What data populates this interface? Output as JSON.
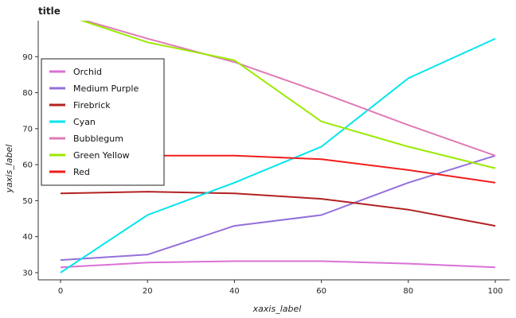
{
  "chart_data": {
    "type": "line",
    "title": "title",
    "xlabel": "xaxis_label",
    "ylabel": "yaxis_label",
    "xlim": [
      0,
      100
    ],
    "ylim": [
      28,
      100
    ],
    "x_ticks": [
      0,
      20,
      40,
      60,
      80,
      100
    ],
    "y_ticks": [
      30,
      40,
      50,
      60,
      70,
      80,
      90
    ],
    "grid": false,
    "legend_position": "left",
    "series": [
      {
        "name": "Orchid",
        "color": "#da70d6",
        "x": [
          0,
          20,
          40,
          60,
          80,
          100
        ],
        "y": [
          31.5,
          32.8,
          33.2,
          33.2,
          32.5,
          31.5
        ]
      },
      {
        "name": "Medium Purple",
        "color": "#9370db",
        "x": [
          0,
          20,
          40,
          60,
          80,
          100
        ],
        "y": [
          33.5,
          35.0,
          43.0,
          46.0,
          55.0,
          62.5
        ]
      },
      {
        "name": "Firebrick",
        "color": "#b22222",
        "x": [
          0,
          20,
          40,
          60,
          80,
          100
        ],
        "y": [
          52.0,
          52.5,
          52.0,
          50.5,
          47.5,
          43.0
        ]
      },
      {
        "name": "Cyan",
        "color": "#00e5ee",
        "x": [
          0,
          20,
          40,
          60,
          80,
          100
        ],
        "y": [
          30.0,
          46.0,
          55.0,
          65.0,
          84.0,
          95.0
        ]
      },
      {
        "name": "Bubblegum",
        "color": "#e07ab6",
        "x": [
          0,
          20,
          40,
          60,
          80,
          100
        ],
        "y": [
          102.0,
          95.0,
          88.5,
          80.0,
          71.0,
          62.5
        ]
      },
      {
        "name": "Green Yellow",
        "color": "#9aea00",
        "x": [
          0,
          20,
          40,
          60,
          80,
          100
        ],
        "y": [
          102.0,
          94.0,
          89.0,
          72.0,
          65.0,
          59.0
        ]
      },
      {
        "name": "Red",
        "color": "#f21d1d",
        "x": [
          0,
          20,
          40,
          60,
          80,
          100
        ],
        "y": [
          62.5,
          62.5,
          62.5,
          61.5,
          58.5,
          55.0
        ]
      }
    ]
  }
}
